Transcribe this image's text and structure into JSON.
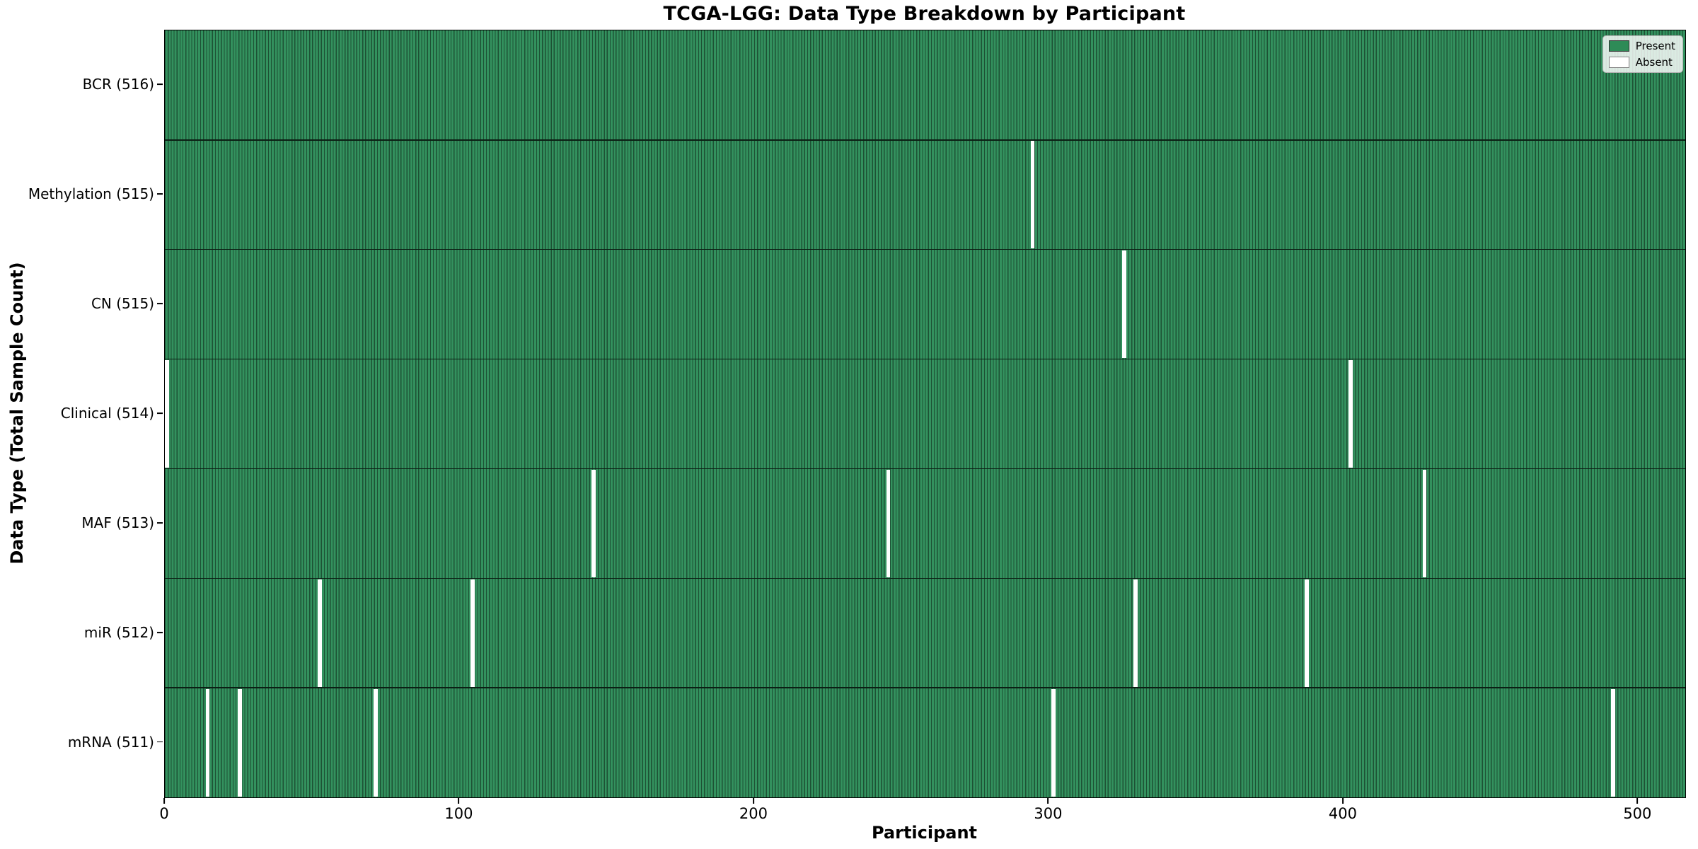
{
  "chart_data": {
    "type": "heatmap",
    "title": "TCGA-LGG: Data Type Breakdown by Participant",
    "xlabel": "Participant",
    "ylabel": "Data Type (Total Sample Count)",
    "n_participants": 516,
    "x_ticks": [
      0,
      100,
      200,
      300,
      400,
      500
    ],
    "x_range": [
      0,
      516
    ],
    "grid": false,
    "legend_position": "upper right",
    "legend": [
      {
        "name": "present",
        "label": "Present",
        "color": "#2e8b57"
      },
      {
        "name": "absent",
        "label": "Absent",
        "color": "#ffffff"
      }
    ],
    "rows": [
      {
        "name": "bcr",
        "label": "BCR (516)",
        "data_type": "BCR",
        "total": 516,
        "absent_participants": []
      },
      {
        "name": "methylation",
        "label": "Methylation (515)",
        "data_type": "Methylation",
        "total": 515,
        "absent_participants": [
          294
        ]
      },
      {
        "name": "cn",
        "label": "CN (515)",
        "data_type": "CN",
        "total": 515,
        "absent_participants": [
          325
        ]
      },
      {
        "name": "clinical",
        "label": "Clinical (514)",
        "data_type": "Clinical",
        "total": 514,
        "absent_participants": [
          0,
          402
        ]
      },
      {
        "name": "maf",
        "label": "MAF (513)",
        "data_type": "MAF",
        "total": 513,
        "absent_participants": [
          145,
          245,
          427
        ]
      },
      {
        "name": "mir",
        "label": "miR (512)",
        "data_type": "miR",
        "total": 512,
        "absent_participants": [
          52,
          104,
          329,
          387
        ]
      },
      {
        "name": "mrna",
        "label": "mRNA (511)",
        "data_type": "mRNA",
        "total": 511,
        "absent_participants": [
          14,
          25,
          71,
          301,
          491
        ]
      }
    ],
    "colors": {
      "present_fill": "#33915e",
      "bar_edge_line": "#1d5134",
      "absent": "#ffffff",
      "separator": "#0b1f14",
      "spine": "#000000"
    }
  }
}
